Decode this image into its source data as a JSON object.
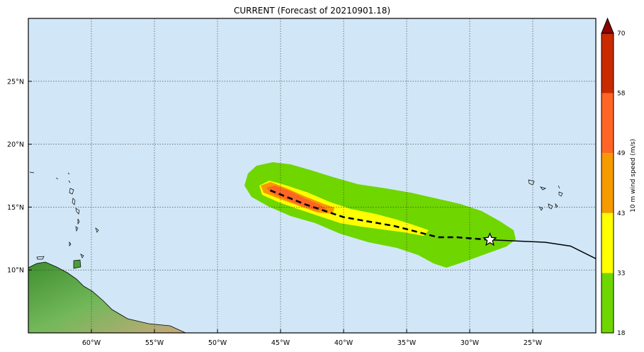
{
  "title": "CURRENT (Forecast of 20210901.18)",
  "map": {
    "lon_range": [
      -65,
      -20
    ],
    "lat_range": [
      5,
      30
    ],
    "ocean_color": "#d1e7f7",
    "lon_ticks": [
      {
        "value": -60,
        "label": "60°W"
      },
      {
        "value": -55,
        "label": "55°W"
      },
      {
        "value": -50,
        "label": "50°W"
      },
      {
        "value": -45,
        "label": "45°W"
      },
      {
        "value": -40,
        "label": "40°W"
      },
      {
        "value": -35,
        "label": "35°W"
      },
      {
        "value": -30,
        "label": "30°W"
      },
      {
        "value": -25,
        "label": "25°W"
      }
    ],
    "lat_ticks": [
      {
        "value": 10,
        "label": "10°N"
      },
      {
        "value": 15,
        "label": "15°N"
      },
      {
        "value": 20,
        "label": "20°N"
      },
      {
        "value": 25,
        "label": "25°N"
      }
    ],
    "past_track": [
      [
        -20,
        10.9
      ],
      [
        -22,
        11.9
      ],
      [
        -24,
        12.2
      ],
      [
        -28.4,
        12.4
      ]
    ],
    "forecast_track": [
      [
        -28.4,
        12.4
      ],
      [
        -31,
        12.6
      ],
      [
        -32.5,
        12.6
      ],
      [
        -36,
        13.5
      ],
      [
        -40,
        14.2
      ],
      [
        -43,
        15.2
      ],
      [
        -46,
        16.4
      ]
    ],
    "current_position": [
      -28.4,
      12.4
    ],
    "current_position_icon": "star-icon"
  },
  "colorbar": {
    "label": "10 m wind speed (m/s)",
    "levels": [
      {
        "value": "18",
        "color": "#6fd600"
      },
      {
        "value": "33",
        "color": "#ffff00"
      },
      {
        "value": "43",
        "color": "#f79a00"
      },
      {
        "value": "49",
        "color": "#ff6625"
      },
      {
        "value": "58",
        "color": "#c92a00"
      },
      {
        "value": "70",
        "color": "#8f0000"
      }
    ]
  }
}
